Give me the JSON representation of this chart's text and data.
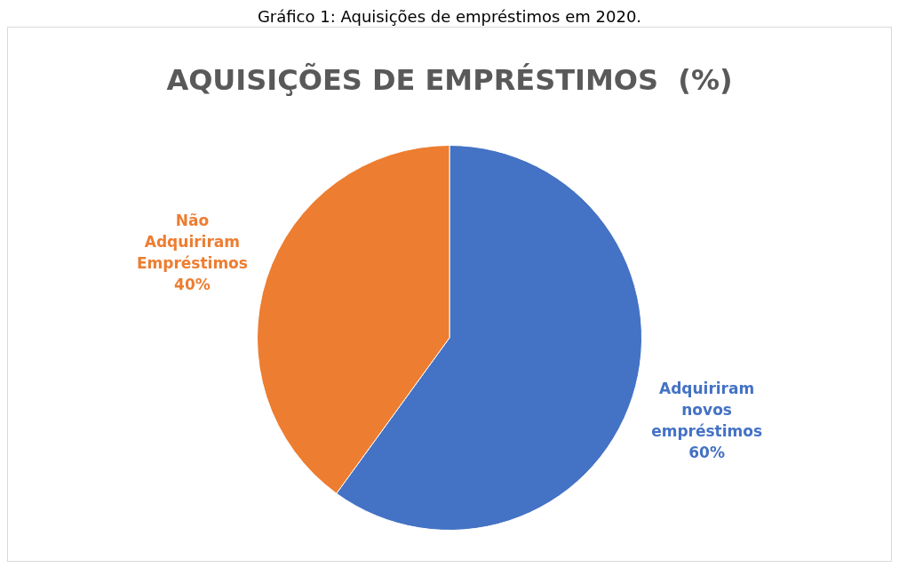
{
  "chart_data": {
    "type": "pie",
    "title": "AQUISIÇÕES DE EMPRÉSTIMOS  (%)",
    "annotations": [
      "Gráfico 1: Aquisições de empréstimos em 2020."
    ],
    "categories": [
      "Adquiriram novos empréstimos",
      "Não Adquiriram Empréstimos"
    ],
    "values": [
      60,
      40
    ],
    "colors": [
      "#4472c4",
      "#ed7d31"
    ],
    "value_labels": [
      "60%",
      "40%"
    ],
    "legend": false
  }
}
